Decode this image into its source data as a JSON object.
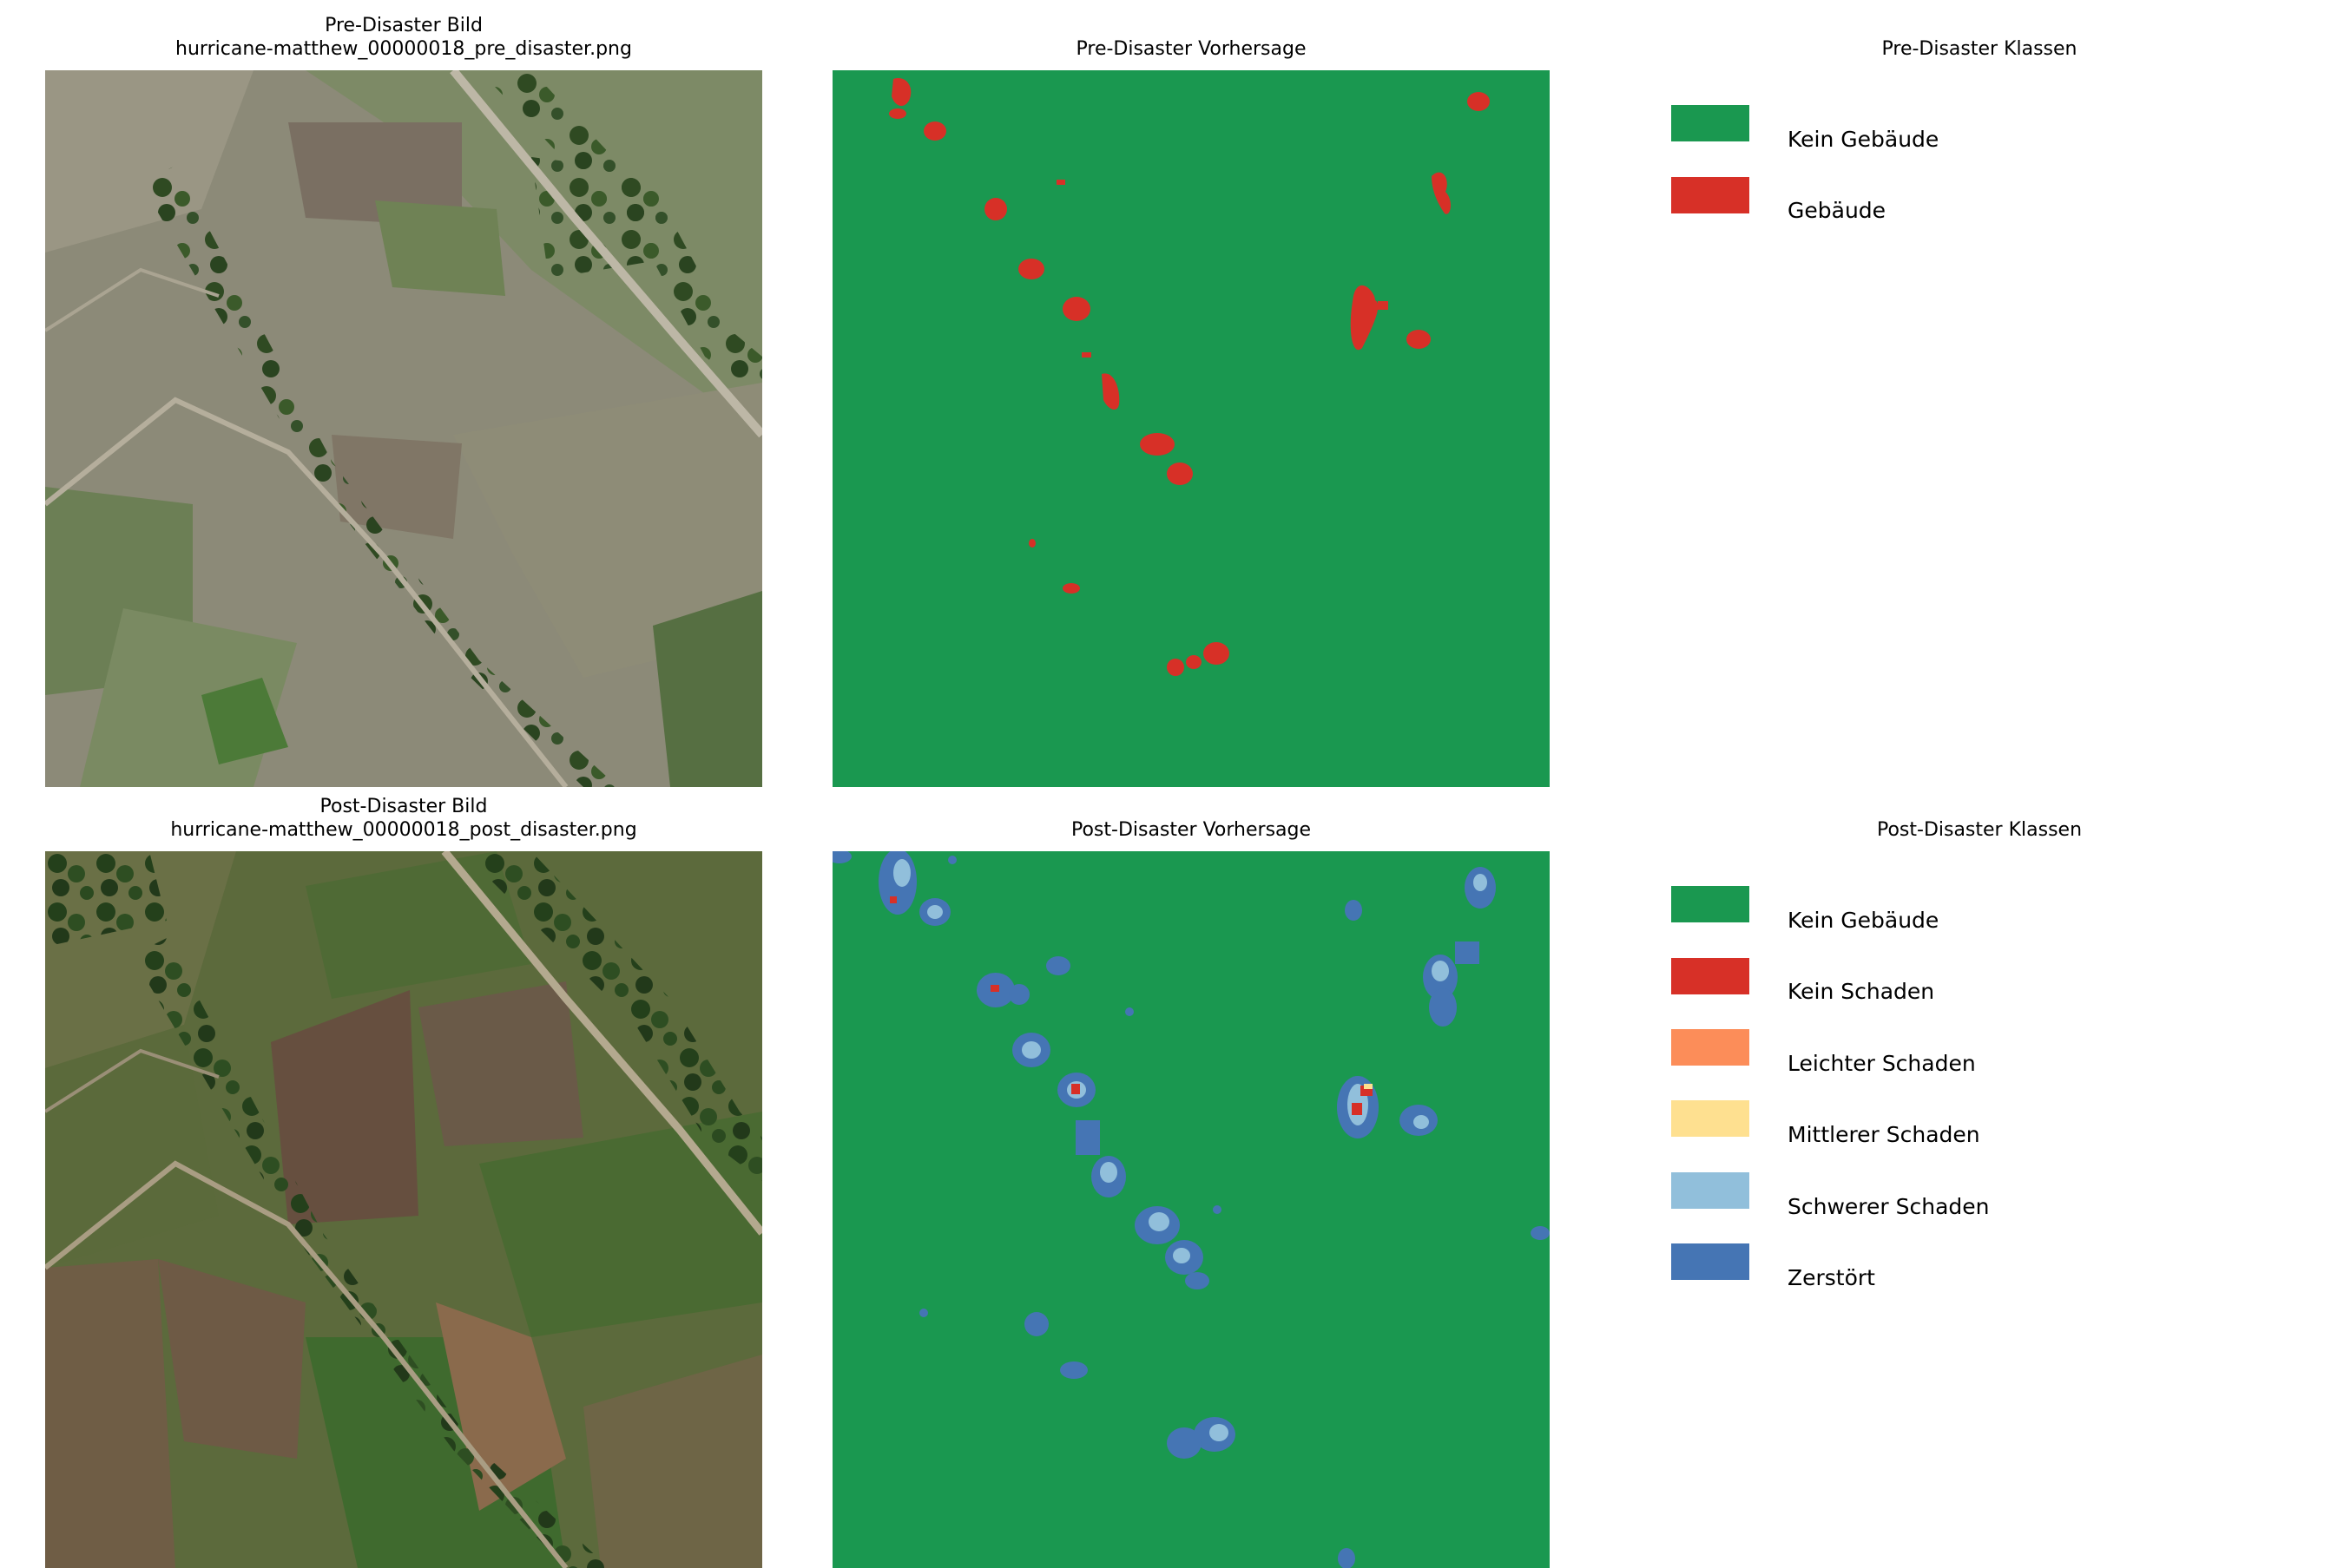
{
  "panels": {
    "pre_image": {
      "title_line1": "Pre-Disaster Bild",
      "title_line2": "hurricane-matthew_00000018_pre_disaster.png"
    },
    "pre_prediction": {
      "title": "Pre-Disaster Vorhersage"
    },
    "pre_legend": {
      "title": "Pre-Disaster Klassen"
    },
    "post_image": {
      "title_line1": "Post-Disaster Bild",
      "title_line2": "hurricane-matthew_00000018_post_disaster.png"
    },
    "post_prediction": {
      "title": "Post-Disaster Vorhersage"
    },
    "post_legend": {
      "title": "Post-Disaster Klassen"
    }
  },
  "legends": {
    "pre": [
      {
        "label": "Kein Gebäude",
        "color": "#1a9850"
      },
      {
        "label": "Gebäude",
        "color": "#d73027"
      }
    ],
    "post": [
      {
        "label": "Kein Gebäude",
        "color": "#1a9850"
      },
      {
        "label": "Kein Schaden",
        "color": "#d73027"
      },
      {
        "label": "Leichter Schaden",
        "color": "#fc8d59"
      },
      {
        "label": "Mittlerer Schaden",
        "color": "#fee090"
      },
      {
        "label": "Schwerer Schaden",
        "color": "#91bfdb"
      },
      {
        "label": "Zerstört",
        "color": "#4575b4"
      }
    ]
  },
  "colors": {
    "background": "#1a9850",
    "building": "#d73027",
    "destroyed": "#4575b4",
    "severe": "#91bfdb",
    "no_damage": "#d73027",
    "minor": "#fc8d59",
    "moderate": "#fee090"
  }
}
